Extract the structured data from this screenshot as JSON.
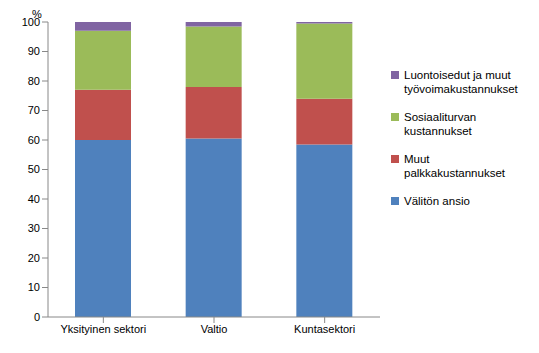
{
  "chart_data": {
    "type": "bar",
    "stacked": true,
    "ylabel": "%",
    "categories": [
      "Yksityinen sektori",
      "Valtio",
      "Kuntasektori"
    ],
    "series": [
      {
        "name": "Välitön ansio",
        "color": "#4f81bd",
        "values": [
          60,
          60.5,
          58.5
        ]
      },
      {
        "name": "Muut palkkakustannukset",
        "color": "#c0504d",
        "values": [
          17,
          17.5,
          15.5
        ]
      },
      {
        "name": "Sosiaaliturvan kustannukset",
        "color": "#9bbb59",
        "values": [
          20,
          20.5,
          25.5
        ]
      },
      {
        "name": "Luontoisedut ja muut työvoimakustannukset",
        "color": "#8064a2",
        "values": [
          3,
          1.5,
          0.5
        ]
      }
    ],
    "ylim": [
      0,
      100
    ],
    "yticks": [
      0,
      10,
      20,
      30,
      40,
      50,
      60,
      70,
      80,
      90,
      100
    ],
    "grid": false,
    "legend": "right"
  }
}
